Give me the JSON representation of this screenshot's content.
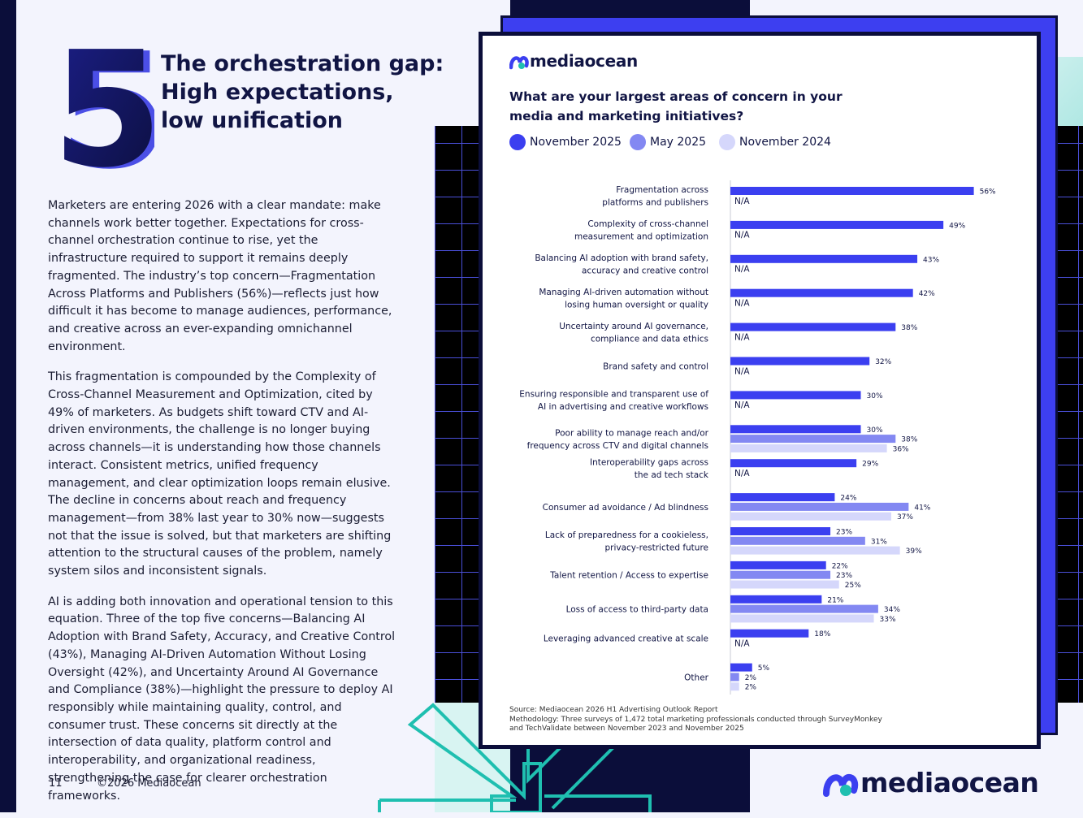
{
  "page": {
    "number": "5",
    "title_lines": [
      "The orchestration gap:",
      "High expectations,",
      "low unification"
    ],
    "paragraphs": [
      "Marketers are entering 2026 with a clear mandate: make channels work better together. Expectations for cross-channel orchestration continue to rise, yet the infrastructure required to support it remains deeply fragmented. The industry’s top concern—Fragmentation Across Platforms and Publishers (56%)—reflects just how difficult it has become to manage audiences, performance, and creative across an ever-expanding omnichannel environment.",
      "This fragmentation is compounded by the Complexity of Cross-Channel Measurement and Optimization, cited by 49% of marketers. As budgets shift toward CTV and AI-driven environments, the challenge is no longer buying across channels—it is understanding how those channels interact. Consistent metrics, unified frequency management, and clear optimization loops remain elusive. The decline in concerns about reach and frequency management—from 38% last year to 30% now—suggests not that the issue is solved, but that marketers are shifting attention to the structural causes of the problem, namely system silos and inconsistent signals.",
      "AI is adding both innovation and operational tension to this equation. Three of the top five concerns—Balancing AI Adoption with Brand Safety, Accuracy, and Creative Control (43%), Managing AI-Driven Automation Without Losing Oversight (42%), and Uncertainty Around AI Governance and Compliance (38%)—highlight the pressure to deploy AI responsibly while maintaining quality, control, and consumer trust. These concerns sit directly at the intersection of data quality, platform control and interoperability, and organizational readiness, strengthening the case for clearer orchestration frameworks."
    ],
    "footer_page_number": "11",
    "footer_copyright": "©2026 Mediaocean",
    "brand": "mediaocean"
  },
  "colors": {
    "nov2025": "#3b3ff0",
    "may2025": "#8388f2",
    "nov2024": "#d5d7fb",
    "navy": "#0b0e3a",
    "teal": "#1fbfb0"
  },
  "chart_data": {
    "type": "bar",
    "orientation": "horizontal",
    "title": "What are your largest areas of concern in your media and marketing initiatives?",
    "unit": "%",
    "xlim": [
      0,
      60
    ],
    "missing_label": "N/A",
    "categories": [
      [
        "Fragmentation across",
        "platforms and publishers"
      ],
      [
        "Complexity of cross-channel",
        "measurement and optimization"
      ],
      [
        "Balancing AI adoption with brand safety,",
        "accuracy and creative control"
      ],
      [
        "Managing AI-driven automation without",
        "losing human oversight or quality"
      ],
      [
        "Uncertainty around AI governance,",
        "compliance and data ethics"
      ],
      [
        "Brand safety and control"
      ],
      [
        "Ensuring responsible and transparent use of",
        "AI in advertising and creative workflows"
      ],
      [
        "Poor ability to manage reach and/or",
        "frequency across CTV and digital channels"
      ],
      [
        "Interoperability gaps across",
        "the ad tech stack"
      ],
      [
        "Consumer ad avoidance / Ad blindness"
      ],
      [
        "Lack of preparedness for a cookieless,",
        "privacy-restricted future"
      ],
      [
        "Talent retention / Access to expertise"
      ],
      [
        "Loss of access to third-party data"
      ],
      [
        "Leveraging advanced creative at scale"
      ],
      [
        "Other"
      ]
    ],
    "series": [
      {
        "name": "November 2025",
        "color_key": "nov2025",
        "values": [
          56,
          49,
          43,
          42,
          38,
          32,
          30,
          30,
          29,
          24,
          23,
          22,
          21,
          18,
          5
        ]
      },
      {
        "name": "May 2025",
        "color_key": "may2025",
        "values": [
          null,
          null,
          null,
          null,
          null,
          null,
          null,
          38,
          null,
          41,
          31,
          23,
          34,
          null,
          2
        ]
      },
      {
        "name": "November 2024",
        "color_key": "nov2024",
        "values": [
          null,
          null,
          null,
          null,
          null,
          null,
          null,
          36,
          null,
          37,
          39,
          25,
          33,
          null,
          2
        ]
      }
    ],
    "source": "Source: Mediaocean 2026 H1 Advertising Outlook Report",
    "methodology_lines": [
      "Methodology: Three surveys of 1,472 total marketing professionals conducted through SurveyMonkey",
      "and TechValidate between November 2023 and November 2025"
    ]
  }
}
